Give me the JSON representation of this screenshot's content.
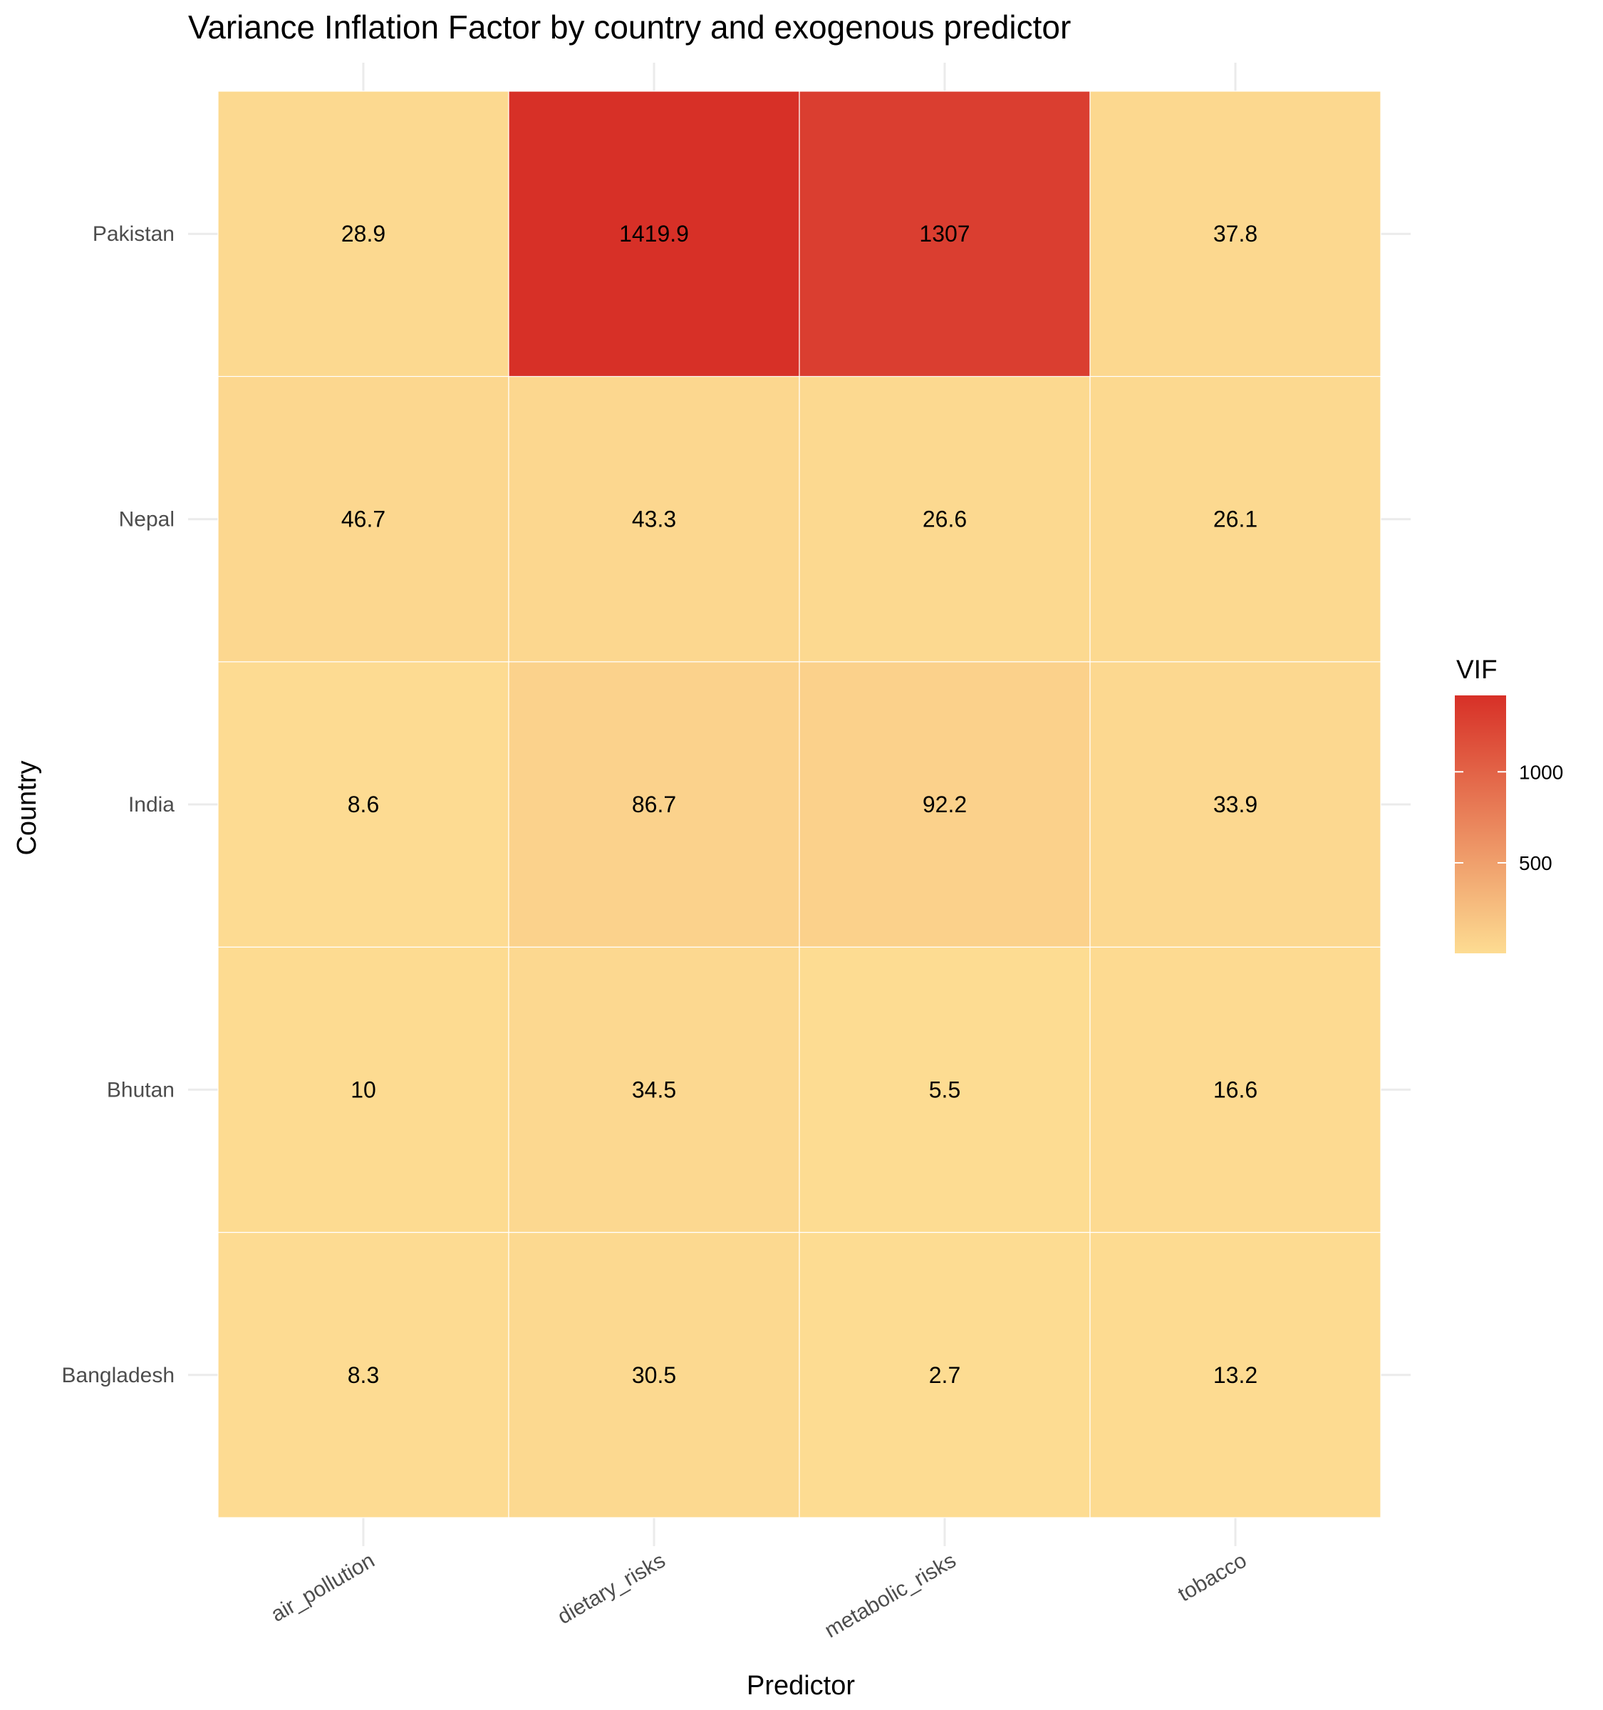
{
  "chart_data": {
    "type": "heatmap",
    "title": "Variance Inflation Factor by country and exogenous predictor",
    "xlabel": "Predictor",
    "ylabel": "Country",
    "x_categories": [
      "air_pollution",
      "dietary_risks",
      "metabolic_risks",
      "tobacco"
    ],
    "y_categories": [
      "Bangladesh",
      "Bhutan",
      "India",
      "Nepal",
      "Pakistan"
    ],
    "values": [
      [
        8.3,
        30.5,
        2.7,
        13.2
      ],
      [
        10,
        34.5,
        5.5,
        16.6
      ],
      [
        8.6,
        86.7,
        92.2,
        33.9
      ],
      [
        46.7,
        43.3,
        26.6,
        26.1
      ],
      [
        28.9,
        1419.9,
        1307,
        37.8
      ]
    ],
    "labels": [
      [
        "8.3",
        "30.5",
        "2.7",
        "13.2"
      ],
      [
        "10",
        "34.5",
        "5.5",
        "16.6"
      ],
      [
        "8.6",
        "86.7",
        "92.2",
        "33.9"
      ],
      [
        "46.7",
        "43.3",
        "26.6",
        "26.1"
      ],
      [
        "28.9",
        "1419.9",
        "1307",
        "37.8"
      ]
    ],
    "legend": {
      "title": "VIF",
      "ticks": [
        500,
        1000
      ],
      "tick_labels": [
        "500",
        "1000"
      ],
      "range": [
        2.7,
        1419.9
      ],
      "color_low": "#fddc92",
      "color_high": "#d73027",
      "placement": "right"
    },
    "grid": true
  }
}
